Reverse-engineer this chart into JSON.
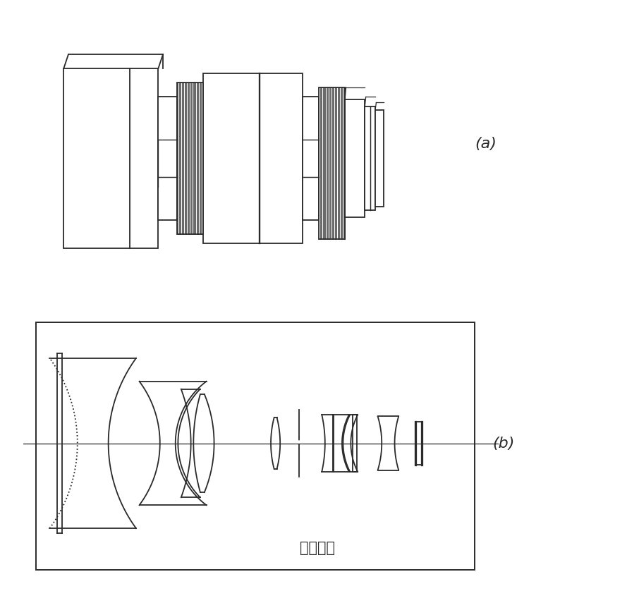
{
  "bg_color": "#ffffff",
  "line_color": "#2a2a2a",
  "label_a": "(a)",
  "label_b": "(b)",
  "subtitle": "微距镜头",
  "fig_width": 9.06,
  "fig_height": 8.38
}
